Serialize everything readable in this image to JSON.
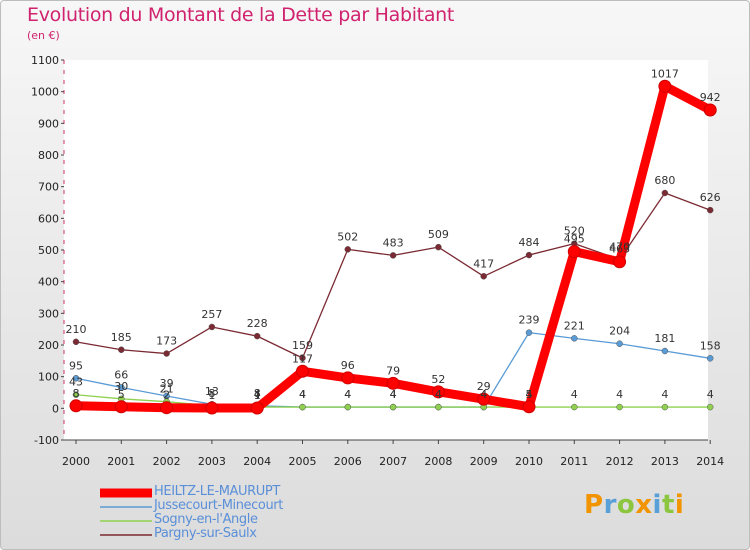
{
  "chart_data": {
    "type": "line",
    "title": "Evolution du Montant de la Dette par Habitant",
    "subtitle": "(en €)",
    "xlabel": "",
    "ylabel": "",
    "x": [
      "2000",
      "2001",
      "2002",
      "2003",
      "2004",
      "2005",
      "2006",
      "2007",
      "2008",
      "2009",
      "2010",
      "2011",
      "2012",
      "2013",
      "2014"
    ],
    "ylim": [
      -100,
      1100
    ],
    "yticks": [
      -100,
      0,
      100,
      200,
      300,
      400,
      500,
      600,
      700,
      800,
      900,
      1000,
      1100
    ],
    "grid": false,
    "legend_position": "bottom-left",
    "series": [
      {
        "name": "Pargny-sur-Saulx",
        "color": "#7b2a33",
        "values": [
          210,
          185,
          173,
          257,
          228,
          159,
          502,
          483,
          509,
          417,
          484,
          520,
          470,
          680,
          626
        ],
        "labels": [
          "210",
          "185",
          "173",
          "257",
          "228",
          "159",
          "502",
          "483",
          "509",
          "417",
          "484",
          "520",
          "470",
          "680",
          "626"
        ]
      },
      {
        "name": "Jussecourt-Minecourt",
        "color": "#5a9bd5",
        "values": [
          95,
          66,
          39,
          13,
          8,
          4,
          4,
          4,
          4,
          4,
          239,
          221,
          204,
          181,
          158
        ],
        "labels": [
          "95",
          "66",
          "39",
          "13",
          "8",
          "4",
          "4",
          "4",
          "4",
          "4",
          "239",
          "221",
          "204",
          "181",
          "158"
        ]
      },
      {
        "name": "Sogny-en-l'Angle",
        "color": "#8fd14f",
        "values": [
          43,
          30,
          21,
          8,
          4,
          4,
          4,
          4,
          4,
          4,
          4,
          4,
          4,
          4,
          4
        ],
        "labels": [
          "43",
          "30",
          "21",
          "8",
          "4",
          "4",
          "4",
          "4",
          "4",
          "4",
          "4",
          "4",
          "4",
          "4",
          "4"
        ]
      },
      {
        "name": "HEILTZ-LE-MAURUPT",
        "color": "#ff0000",
        "values": [
          8,
          5,
          2,
          1,
          1,
          117,
          96,
          79,
          52,
          29,
          5,
          495,
          463,
          1017,
          942
        ],
        "labels": [
          "8",
          "5",
          "2",
          "1",
          "1",
          "117",
          "96",
          "79",
          "52",
          "29",
          "5",
          "495",
          "463",
          "1017",
          "942"
        ]
      }
    ],
    "legend": [
      "HEILTZ-LE-MAURUPT",
      "Jussecourt-Minecourt",
      "Sogny-en-l'Angle",
      "Pargny-sur-Saulx"
    ]
  },
  "logo": {
    "text": [
      "P",
      "r",
      "o",
      "x",
      "i",
      "t",
      "i"
    ],
    "colors": [
      "#f29400",
      "#5aa0d8",
      "#8cc63f",
      "#f29400",
      "#5aa0d8",
      "#8cc63f",
      "#f29400"
    ]
  }
}
